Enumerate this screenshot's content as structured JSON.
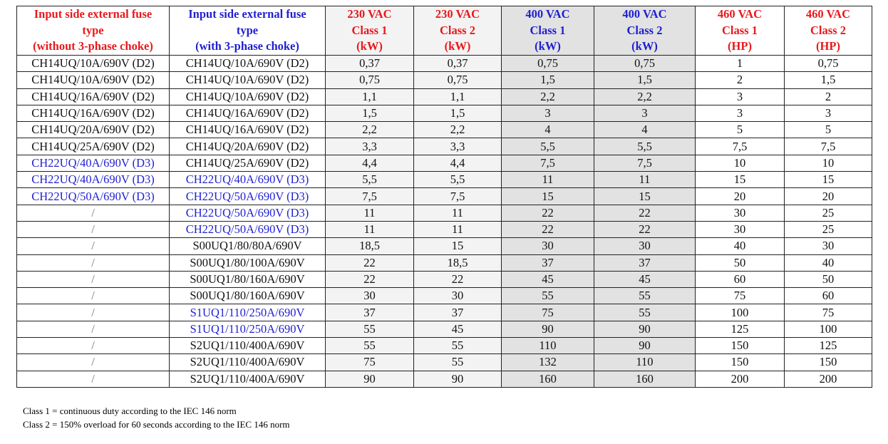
{
  "table": {
    "headers": [
      "Input side external fuse\ntype\n(without 3-phase choke)",
      "Input side external fuse\ntype\n(with 3-phase choke)",
      "230 VAC\nClass 1\n(kW)",
      "230 VAC\nClass 2\n(kW)",
      "400 VAC\nClass 1\n(kW)",
      "400 VAC\nClass 2\n(kW)",
      "460 VAC\nClass 1\n(HP)",
      "460 VAC\nClass 2\n(HP)"
    ],
    "rows": [
      [
        "CH14UQ/10A/690V (D2)",
        "CH14UQ/10A/690V (D2)",
        "0,37",
        "0,37",
        "0,75",
        "0,75",
        "1",
        "0,75"
      ],
      [
        "CH14UQ/10A/690V (D2)",
        "CH14UQ/10A/690V (D2)",
        "0,75",
        "0,75",
        "1,5",
        "1,5",
        "2",
        "1,5"
      ],
      [
        "CH14UQ/16A/690V (D2)",
        "CH14UQ/10A/690V (D2)",
        "1,1",
        "1,1",
        "2,2",
        "2,2",
        "3",
        "2"
      ],
      [
        "CH14UQ/16A/690V (D2)",
        "CH14UQ/16A/690V (D2)",
        "1,5",
        "1,5",
        "3",
        "3",
        "3",
        "3"
      ],
      [
        "CH14UQ/20A/690V (D2)",
        "CH14UQ/16A/690V (D2)",
        "2,2",
        "2,2",
        "4",
        "4",
        "5",
        "5"
      ],
      [
        "CH14UQ/25A/690V (D2)",
        "CH14UQ/20A/690V (D2)",
        "3,3",
        "3,3",
        "5,5",
        "5,5",
        "7,5",
        "7,5"
      ],
      [
        "CH22UQ/40A/690V (D3)",
        "CH14UQ/25A/690V (D2)",
        "4,4",
        "4,4",
        "7,5",
        "7,5",
        "10",
        "10"
      ],
      [
        "CH22UQ/40A/690V (D3)",
        "CH22UQ/40A/690V (D3)",
        "5,5",
        "5,5",
        "11",
        "11",
        "15",
        "15"
      ],
      [
        "CH22UQ/50A/690V (D3)",
        "CH22UQ/50A/690V (D3)",
        "7,5",
        "7,5",
        "15",
        "15",
        "20",
        "20"
      ],
      [
        "/",
        "CH22UQ/50A/690V (D3)",
        "11",
        "11",
        "22",
        "22",
        "30",
        "25"
      ],
      [
        "/",
        "CH22UQ/50A/690V (D3)",
        "11",
        "11",
        "22",
        "22",
        "30",
        "25"
      ],
      [
        "/",
        "S00UQ1/80/80A/690V",
        "18,5",
        "15",
        "30",
        "30",
        "40",
        "30"
      ],
      [
        "/",
        "S00UQ1/80/100A/690V",
        "22",
        "18,5",
        "37",
        "37",
        "50",
        "40"
      ],
      [
        "/",
        "S00UQ1/80/160A/690V",
        "22",
        "22",
        "45",
        "45",
        "60",
        "50"
      ],
      [
        "/",
        "S00UQ1/80/160A/690V",
        "30",
        "30",
        "55",
        "55",
        "75",
        "60"
      ],
      [
        "/",
        "S1UQ1/110/250A/690V",
        "37",
        "37",
        "75",
        "55",
        "100",
        "75"
      ],
      [
        "/",
        "S1UQ1/110/250A/690V",
        "55",
        "45",
        "90",
        "90",
        "125",
        "100"
      ],
      [
        "/",
        "S2UQ1/110/400A/690V",
        "55",
        "55",
        "110",
        "90",
        "150",
        "125"
      ],
      [
        "/",
        "S2UQ1/110/400A/690V",
        "75",
        "55",
        "132",
        "110",
        "150",
        "150"
      ],
      [
        "/",
        "S2UQ1/110/400A/690V",
        "90",
        "90",
        "160",
        "160",
        "200",
        "200"
      ]
    ]
  },
  "notes": [
    "Class 1 = continuous duty according to the IEC 146 norm",
    "Class 2 = 150% overload for 60 seconds according to the IEC 146 norm"
  ]
}
